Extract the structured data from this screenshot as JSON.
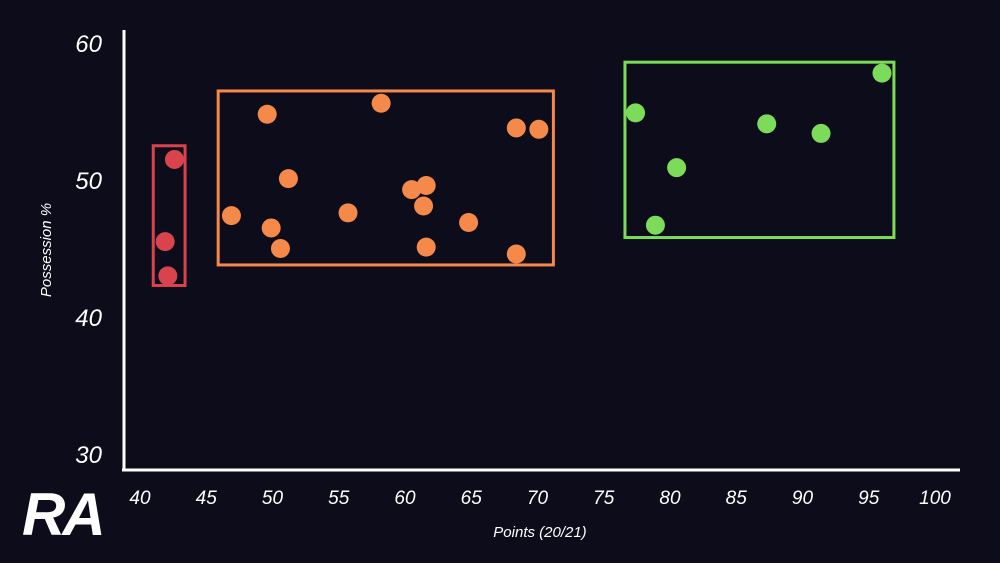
{
  "logo_text": "RA",
  "colors": {
    "background": "#0d0c1a",
    "axis": "#ffffff",
    "red": "#d9434e",
    "orange": "#f5894a",
    "green": "#7cdc5a"
  },
  "chart_data": {
    "type": "scatter",
    "title": "",
    "xlabel": "Points (20/21)",
    "ylabel": "Possession %",
    "xlim": [
      40,
      100
    ],
    "ylim": [
      30,
      60
    ],
    "x_ticks": [
      40,
      45,
      50,
      55,
      60,
      65,
      70,
      75,
      80,
      85,
      90,
      95,
      100
    ],
    "y_ticks": [
      30,
      40,
      50,
      60
    ],
    "grid": false,
    "series": [
      {
        "color": "#d9434e",
        "points": [
          [
            42.6,
            51.5
          ],
          [
            41.9,
            45.5
          ],
          [
            42.1,
            43.0
          ]
        ],
        "box": {
          "x": [
            41.0,
            43.4
          ],
          "y": [
            42.3,
            52.5
          ]
        }
      },
      {
        "color": "#f5894a",
        "points": [
          [
            49.6,
            54.8
          ],
          [
            58.2,
            55.6
          ],
          [
            68.4,
            53.8
          ],
          [
            70.1,
            53.7
          ],
          [
            51.2,
            50.1
          ],
          [
            60.5,
            49.3
          ],
          [
            61.6,
            49.6
          ],
          [
            61.4,
            48.1
          ],
          [
            46.9,
            47.4
          ],
          [
            55.7,
            47.6
          ],
          [
            49.9,
            46.5
          ],
          [
            64.8,
            46.9
          ],
          [
            50.6,
            45.0
          ],
          [
            61.6,
            45.1
          ],
          [
            68.4,
            44.6
          ]
        ],
        "box": {
          "x": [
            45.9,
            71.2
          ],
          "y": [
            43.8,
            56.5
          ]
        }
      },
      {
        "color": "#7cdc5a",
        "points": [
          [
            77.4,
            54.9
          ],
          [
            87.3,
            54.1
          ],
          [
            91.4,
            53.4
          ],
          [
            96.0,
            57.8
          ],
          [
            80.5,
            50.9
          ],
          [
            78.9,
            46.7
          ]
        ],
        "box": {
          "x": [
            76.6,
            96.9
          ],
          "y": [
            45.8,
            58.6
          ]
        }
      }
    ]
  }
}
